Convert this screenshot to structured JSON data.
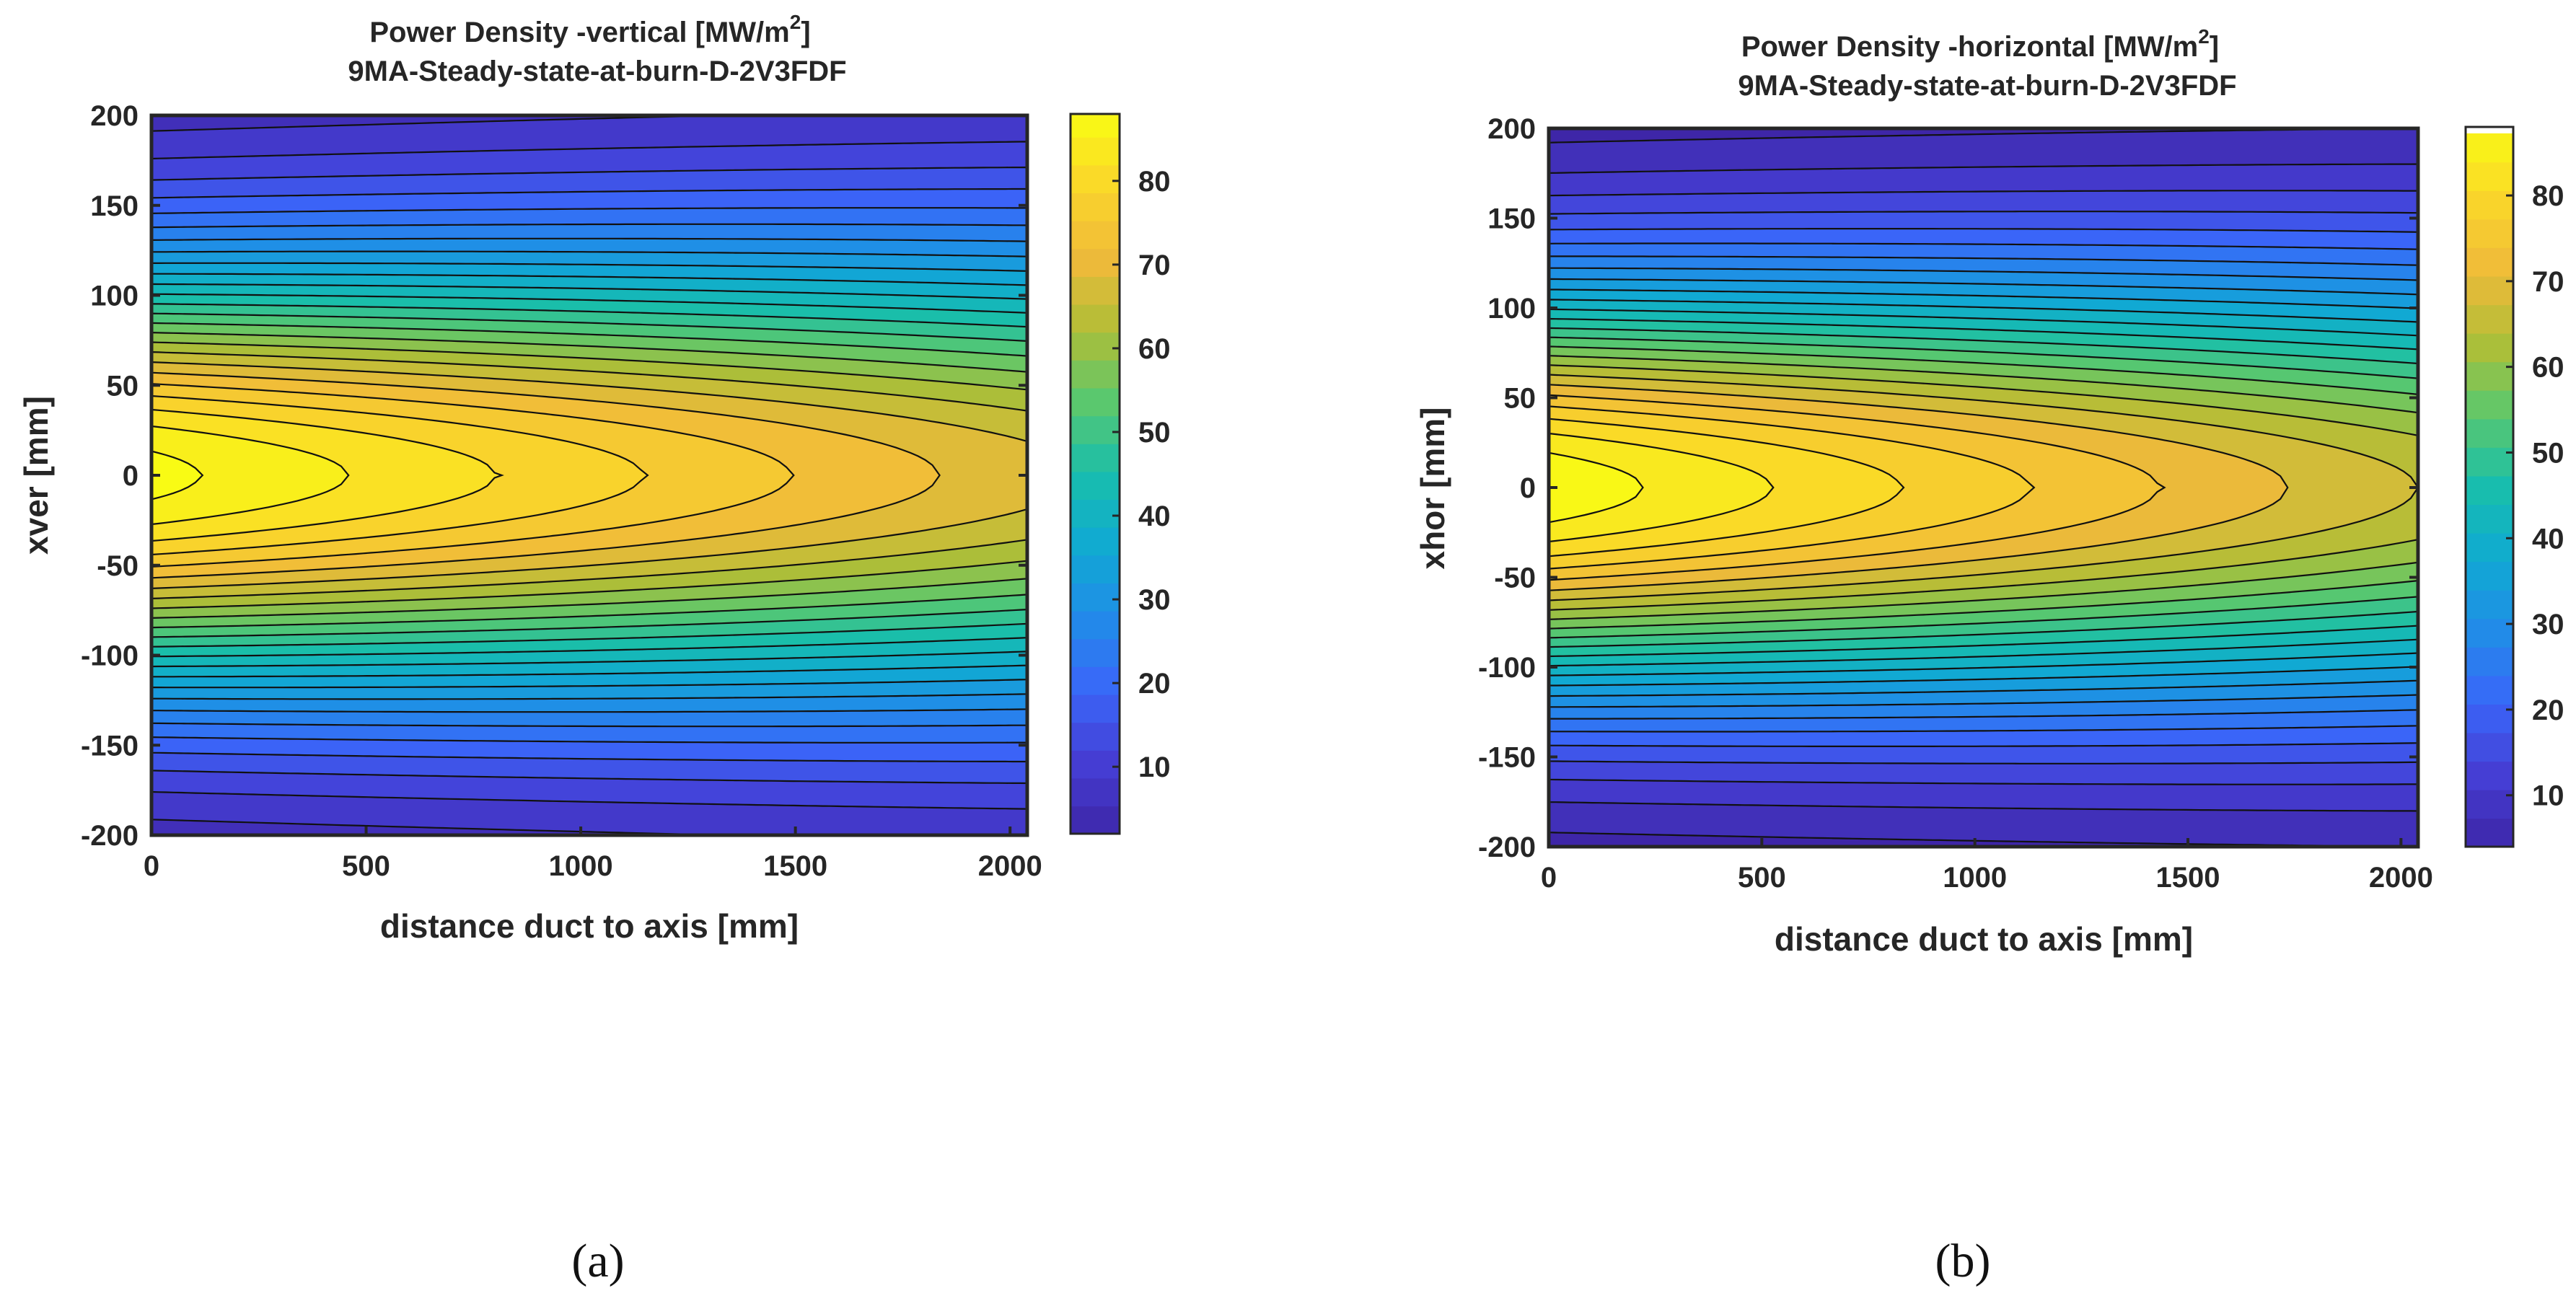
{
  "panels": [
    {
      "caption": "(a)"
    },
    {
      "caption": "(b)"
    }
  ],
  "chart_data": [
    {
      "type": "heatmap",
      "subtype": "filled-contour",
      "title_line1": "Power Density -vertical [MW/m",
      "title_sup": "2",
      "title_close": "]",
      "title_line2": "9MA-Steady-state-at-burn-D-2V3FDF",
      "xlabel": "distance duct to axis [mm]",
      "ylabel": "xver [mm]",
      "xlim": [
        0,
        2040
      ],
      "ylim": [
        -200,
        200
      ],
      "xticks": [
        0,
        500,
        1000,
        1500,
        2000
      ],
      "yticks": [
        200,
        150,
        100,
        50,
        0,
        -50,
        -100,
        -150,
        -200
      ],
      "colorbar": {
        "range": [
          2,
          88
        ],
        "ticks": [
          10,
          20,
          30,
          40,
          50,
          60,
          70,
          80
        ]
      },
      "peak": 88,
      "axis_drop": 0.78,
      "gaussian_width_mm": 85,
      "width_growth": 0.12,
      "contour_step": 3.33
    },
    {
      "type": "heatmap",
      "subtype": "filled-contour",
      "title_line1": "Power Density -horizontal [MW/m",
      "title_sup": "2",
      "title_close": "]",
      "title_line2": "9MA-Steady-state-at-burn-D-2V3FDF",
      "xlabel": "distance duct to axis [mm]",
      "ylabel": "xhor [mm]",
      "xlim": [
        0,
        2040
      ],
      "ylim": [
        -200,
        200
      ],
      "xticks": [
        0,
        500,
        1000,
        1500,
        2000
      ],
      "yticks": [
        200,
        150,
        100,
        50,
        0,
        -50,
        -100,
        -150,
        -200
      ],
      "colorbar": {
        "range": [
          4,
          88
        ],
        "ticks": [
          10,
          20,
          30,
          40,
          50,
          60,
          70,
          80
        ]
      },
      "peak": 88,
      "axis_drop": 0.75,
      "gaussian_width_mm": 82,
      "width_growth": 0.1,
      "contour_step": 3.33
    }
  ]
}
